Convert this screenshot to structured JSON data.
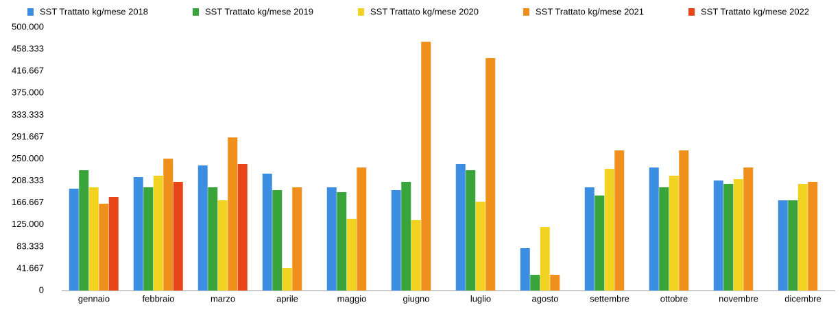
{
  "chart_data": {
    "type": "bar",
    "categories": [
      "gennaio",
      "febbraio",
      "marzo",
      "aprile",
      "maggio",
      "giugno",
      "luglio",
      "agosto",
      "settembre",
      "ottobre",
      "novembre",
      "dicembre"
    ],
    "series": [
      {
        "name": "SST  Trattato kg/mese  2018",
        "color": "#3c8ee2",
        "values": [
          193500,
          215600,
          237700,
          222100,
          196100,
          190900,
          240300,
          80500,
          196100,
          233800,
          209100,
          171400
        ]
      },
      {
        "name": "SST  Trattato kg/mese  2019",
        "color": "#38a43a",
        "values": [
          228600,
          196100,
          196100,
          190900,
          187000,
          206500,
          228600,
          29900,
          180500,
          196100,
          202600,
          171400
        ]
      },
      {
        "name": "SST  Trattato kg/mese  2020",
        "color": "#f2d322",
        "values": [
          196100,
          218200,
          171400,
          42900,
          136400,
          133800,
          168800,
          120800,
          231200,
          218200,
          211700,
          202600
        ]
      },
      {
        "name": "SST  Trattato kg/mese  2021",
        "color": "#f0901c",
        "values": [
          164900,
          250600,
          290900,
          196100,
          233800,
          472700,
          441600,
          29900,
          266200,
          266200,
          233800,
          206500
        ]
      },
      {
        "name": "SST  Trattato kg/mese  2022",
        "color": "#ea4419",
        "values": [
          177900,
          206500,
          240300,
          null,
          null,
          null,
          null,
          null,
          null,
          null,
          null,
          null
        ]
      }
    ],
    "ylim": [
      0,
      500000
    ],
    "yticks": [
      0,
      {
        "value": 41667,
        "label": "41.667"
      },
      {
        "value": 83333,
        "label": "83.333"
      },
      {
        "value": 125000,
        "label": "125.000"
      },
      {
        "value": 166667,
        "label": "166.667"
      },
      {
        "value": 208333,
        "label": "208.333"
      },
      {
        "value": 250000,
        "label": "250.000"
      },
      {
        "value": 291667,
        "label": "291.667"
      },
      {
        "value": 333333,
        "label": "333.333"
      },
      {
        "value": 375000,
        "label": "375.000"
      },
      {
        "value": 416667,
        "label": "416.667"
      },
      {
        "value": 458333,
        "label": "458.333"
      },
      {
        "value": 500000,
        "label": "500.000"
      }
    ],
    "legend": "top"
  }
}
